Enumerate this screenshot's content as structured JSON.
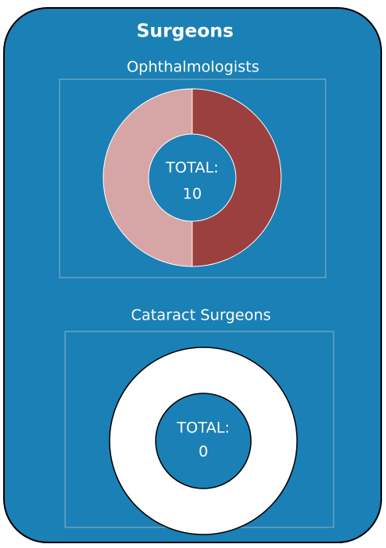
{
  "title": "Surgeons",
  "chart_data": [
    {
      "type": "donut",
      "title": "Ophthalmologists",
      "center_label": "TOTAL:",
      "total": 10,
      "values": [
        5,
        5
      ],
      "colors": [
        "#9b403e",
        "#d5a6a5"
      ]
    },
    {
      "type": "donut",
      "title": "Cataract Surgeons",
      "center_label": "TOTAL:",
      "total": 0,
      "values": [],
      "colors": [],
      "empty_color": "#ffffff"
    }
  ]
}
